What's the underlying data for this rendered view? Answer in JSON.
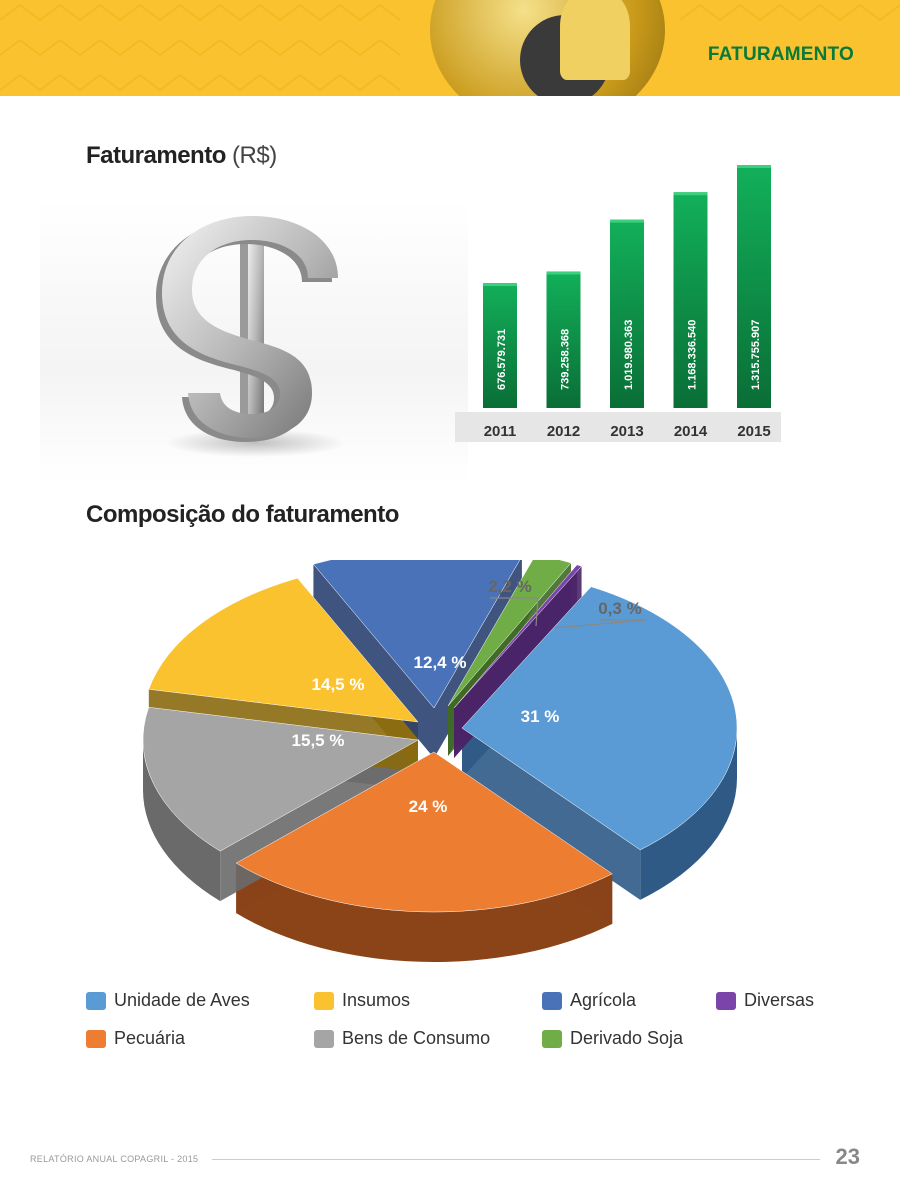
{
  "header": {
    "section": "FATURAMENTO"
  },
  "chart1": {
    "title": "Faturamento",
    "unit": "(R$)"
  },
  "chart_data": [
    {
      "type": "bar",
      "title": "Faturamento (R$)",
      "categories": [
        "2011",
        "2012",
        "2013",
        "2014",
        "2015"
      ],
      "values": [
        676579731,
        739258368,
        1019980363,
        1168336540,
        1315755907
      ],
      "value_labels": [
        "676.579.731",
        "739.258.368",
        "1.019.980.363",
        "1.168.336.540",
        "1.315.755.907"
      ],
      "color": "#0b9a4a"
    },
    {
      "type": "pie",
      "title": "Composição do faturamento",
      "labels": [
        "Unidade de Aves",
        "Pecuária",
        "Bens de Consumo",
        "Insumos",
        "Agrícola",
        "Derivado Soja",
        "Diversas"
      ],
      "values": [
        31,
        24,
        15.5,
        14.5,
        12.4,
        2.2,
        0.3
      ],
      "value_labels": [
        "31 %",
        "24 %",
        "15,5 %",
        "14,5 %",
        "12,4 %",
        "2,2 %",
        "0,3 %"
      ],
      "colors": [
        "#5b9bd5",
        "#ed7d31",
        "#a5a5a5",
        "#f9c22e",
        "#4a72b8",
        "#70ad47",
        "#7a44a8"
      ]
    }
  ],
  "chart2": {
    "title": "Composição do faturamento"
  },
  "legend": [
    {
      "label": "Unidade de Aves",
      "color": "#5b9bd5"
    },
    {
      "label": "Insumos",
      "color": "#f9c22e"
    },
    {
      "label": "Agrícola",
      "color": "#4a72b8"
    },
    {
      "label": "Diversas",
      "color": "#7a44a8"
    },
    {
      "label": "Pecuária",
      "color": "#ed7d31"
    },
    {
      "label": "Bens de Consumo",
      "color": "#a5a5a5"
    },
    {
      "label": "Derivado Soja",
      "color": "#70ad47"
    }
  ],
  "footer": {
    "text": "RELATÓRIO ANUAL COPAGRIL - 2015",
    "page": "23"
  }
}
